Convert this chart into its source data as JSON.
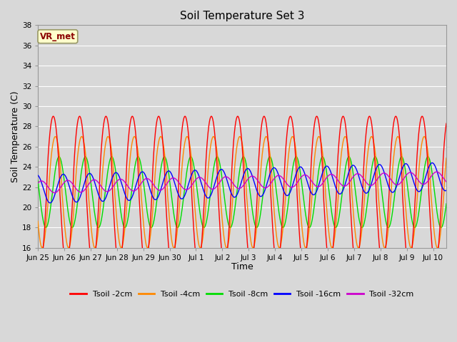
{
  "title": "Soil Temperature Set 3",
  "xlabel": "Time",
  "ylabel": "Soil Temperature (C)",
  "ylim": [
    16,
    38
  ],
  "yticks": [
    16,
    18,
    20,
    22,
    24,
    26,
    28,
    30,
    32,
    34,
    36,
    38
  ],
  "xtick_labels": [
    "Jun 25",
    "Jun 26",
    "Jun 27",
    "Jun 28",
    "Jun 29",
    "Jun 30",
    "Jul 1",
    "Jul 2",
    "Jul 3",
    "Jul 4",
    "Jul 5",
    "Jul 6",
    "Jul 7",
    "Jul 8",
    "Jul 9",
    "Jul 10"
  ],
  "legend_labels": [
    "Tsoil -2cm",
    "Tsoil -4cm",
    "Tsoil -8cm",
    "Tsoil -16cm",
    "Tsoil -32cm"
  ],
  "colors": [
    "#ff0000",
    "#ff8800",
    "#00dd00",
    "#0000ff",
    "#cc00cc"
  ],
  "annotation_text": "VR_met",
  "annotation_color": "#8b0000",
  "annotation_bg": "#ffffcc",
  "bg_color": "#d8d8d8",
  "plot_bg": "#d8d8d8",
  "grid_color": "#ffffff",
  "fig_width": 6.4,
  "fig_height": 4.8,
  "dpi": 100
}
